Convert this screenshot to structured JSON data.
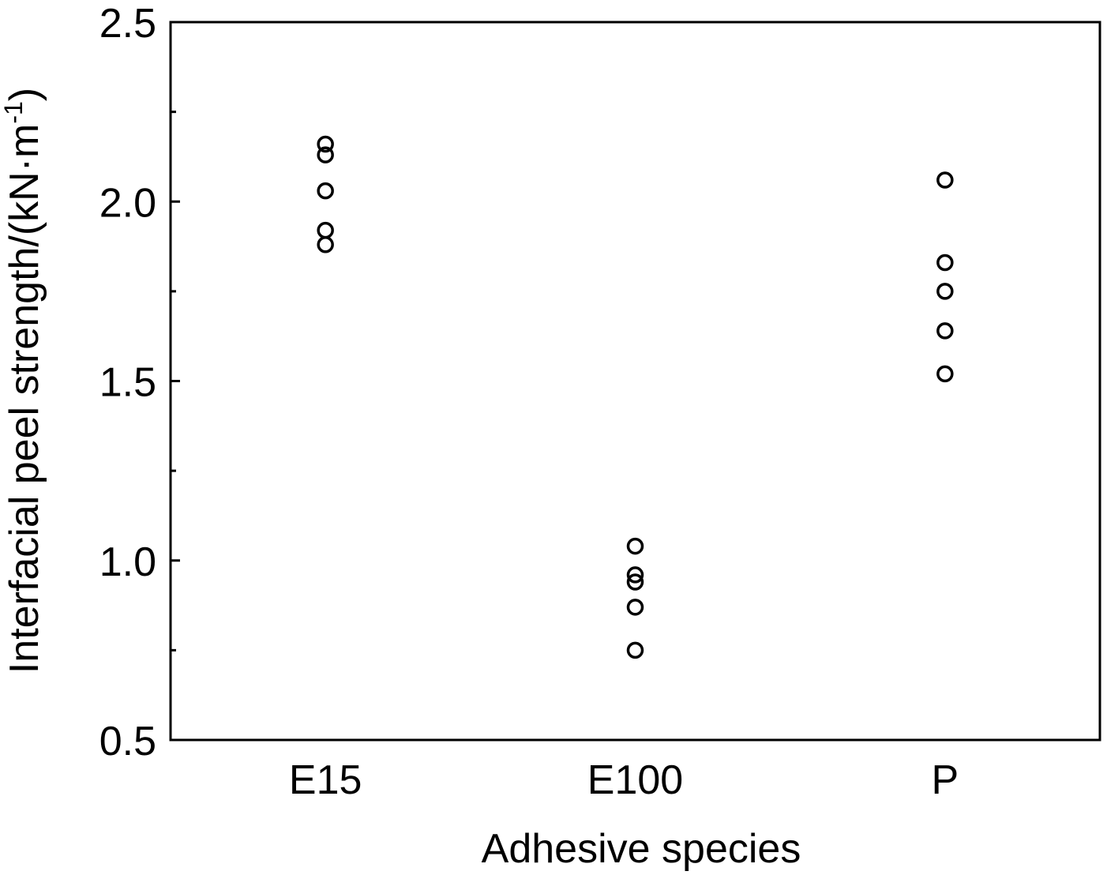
{
  "chart_data": {
    "type": "strip",
    "xlabel": "Adhesive species",
    "ylabel": "Interfacial peel strength/(kN·m",
    "ylabel_sup": "-1",
    "ylabel_end": ")",
    "categories": [
      "E15",
      "E100",
      "P"
    ],
    "values": [
      [
        2.16,
        2.13,
        2.03,
        1.92,
        1.88
      ],
      [
        1.04,
        0.96,
        0.94,
        0.87,
        0.75
      ],
      [
        2.06,
        1.83,
        1.75,
        1.64,
        1.52
      ]
    ],
    "color": "#000000",
    "ylim": [
      0.5,
      2.5
    ],
    "yticks": [
      0.5,
      {
        "value": 1,
        "label": "1.0"
      },
      1.5,
      {
        "value": 2,
        "label": "2.0"
      },
      2.5
    ],
    "minor_yticks": [
      0.75,
      1.25,
      1.75,
      2.25
    ],
    "grid": false
  }
}
